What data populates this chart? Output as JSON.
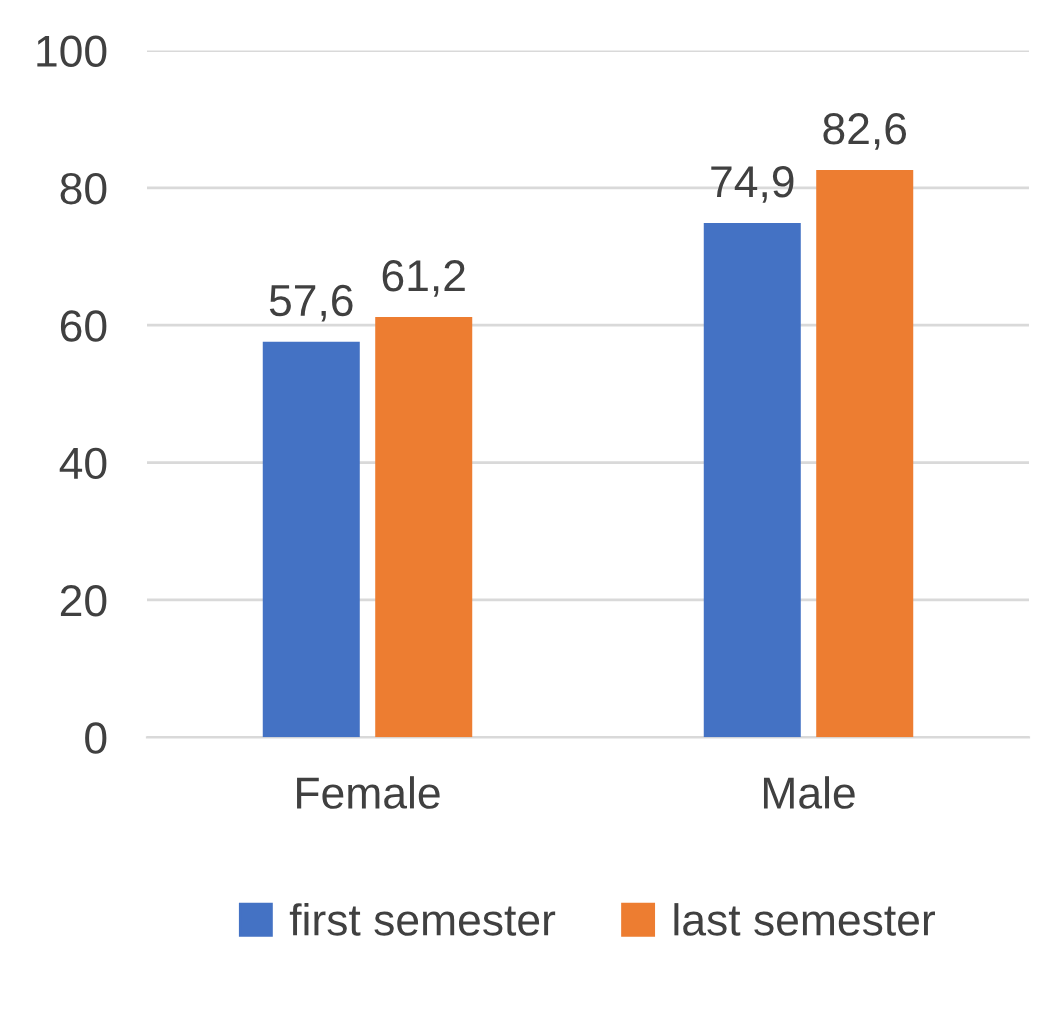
{
  "chart_data": {
    "type": "bar",
    "categories": [
      "Female",
      "Male"
    ],
    "series": [
      {
        "name": "first semester",
        "color": "#4472c4",
        "values": [
          57.6,
          74.9
        ],
        "value_labels": [
          "57,6",
          "74,9"
        ]
      },
      {
        "name": "last semester",
        "color": "#ed7d31",
        "values": [
          61.2,
          82.6
        ],
        "value_labels": [
          "61,2",
          "82,6"
        ]
      }
    ],
    "ylim": [
      0,
      100
    ],
    "yticks": [
      0,
      20,
      40,
      60,
      80,
      100
    ],
    "grid": "y",
    "legend": "bottom"
  }
}
